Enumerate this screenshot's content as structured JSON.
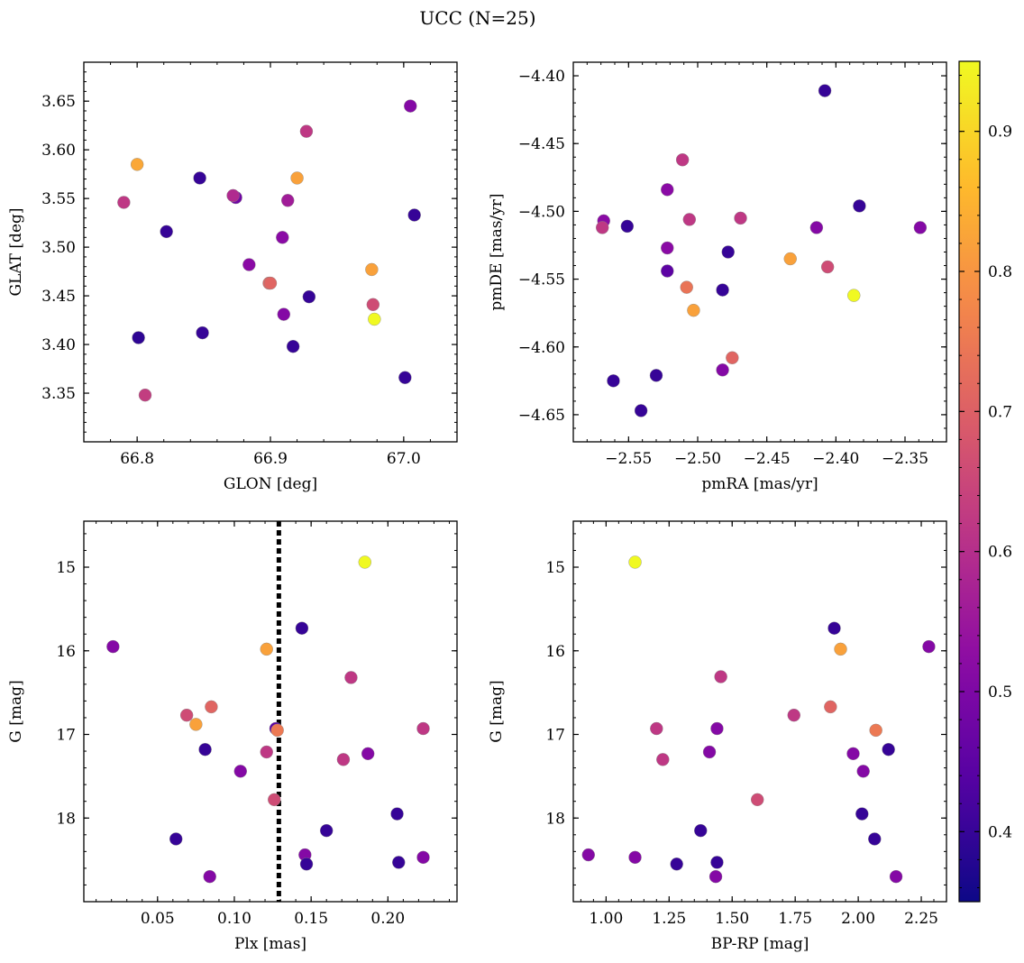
{
  "title": "UCC (N=25)",
  "colorbar": {
    "min": 0.35,
    "max": 0.95,
    "ticks": [
      "0.4",
      "0.5",
      "0.6",
      "0.7",
      "0.8",
      "0.9"
    ],
    "colormap": "plasma"
  },
  "chart_data": [
    {
      "type": "scatter",
      "xlabel": "GLON [deg]",
      "ylabel": "GLAT [deg]",
      "xlim": [
        66.76,
        67.04
      ],
      "ylim": [
        3.3,
        3.69
      ],
      "xticks": [
        "66.8",
        "66.9",
        "67.0"
      ],
      "yticks": [
        "3.35",
        "3.40",
        "3.45",
        "3.50",
        "3.55",
        "3.60",
        "3.65"
      ],
      "x": [
        66.92,
        66.8,
        66.847,
        66.822,
        66.874,
        66.79,
        66.913,
        66.909,
        66.884,
        66.899,
        66.929,
        66.976,
        66.977,
        66.91,
        66.849,
        66.801,
        66.917,
        66.806,
        67.001,
        66.978,
        67.005,
        66.927,
        67.008,
        66.872,
        66.9
      ],
      "y": [
        3.571,
        3.585,
        3.571,
        3.516,
        3.551,
        3.546,
        3.548,
        3.51,
        3.482,
        3.463,
        3.449,
        3.477,
        3.441,
        3.431,
        3.412,
        3.407,
        3.398,
        3.348,
        3.366,
        3.426,
        3.645,
        3.619,
        3.533,
        3.553,
        3.463
      ],
      "c": [
        0.82,
        0.83,
        0.4,
        0.4,
        0.48,
        0.62,
        0.56,
        0.52,
        0.52,
        0.71,
        0.4,
        0.82,
        0.66,
        0.51,
        0.4,
        0.39,
        0.4,
        0.63,
        0.4,
        0.95,
        0.51,
        0.62,
        0.4,
        0.59,
        0.71
      ]
    },
    {
      "type": "scatter",
      "xlabel": "pmRA [mas/yr]",
      "ylabel": "pmDE [mas/yr]",
      "xlim": [
        -2.59,
        -2.32
      ],
      "ylim": [
        -4.67,
        -4.39
      ],
      "xticks": [
        "−2.55",
        "−2.50",
        "−2.45",
        "−2.40",
        "−2.35"
      ],
      "yticks": [
        "−4.65",
        "−4.60",
        "−4.55",
        "−4.50",
        "−4.45",
        "−4.40"
      ],
      "x": [
        -2.408,
        -2.511,
        -2.522,
        -2.469,
        -2.568,
        -2.551,
        -2.383,
        -2.339,
        -2.414,
        -2.506,
        -2.569,
        -2.522,
        -2.478,
        -2.522,
        -2.433,
        -2.406,
        -2.482,
        -2.508,
        -2.503,
        -2.387,
        -2.475,
        -2.482,
        -2.561,
        -2.53,
        -2.541
      ],
      "y": [
        -4.411,
        -4.462,
        -4.484,
        -4.505,
        -4.507,
        -4.511,
        -4.496,
        -4.512,
        -4.512,
        -4.506,
        -4.512,
        -4.527,
        -4.53,
        -4.544,
        -4.535,
        -4.541,
        -4.558,
        -4.556,
        -4.573,
        -4.562,
        -4.608,
        -4.617,
        -4.625,
        -4.621,
        -4.647
      ],
      "c": [
        0.4,
        0.62,
        0.52,
        0.62,
        0.52,
        0.4,
        0.4,
        0.51,
        0.51,
        0.62,
        0.62,
        0.52,
        0.4,
        0.45,
        0.82,
        0.66,
        0.4,
        0.74,
        0.82,
        0.95,
        0.71,
        0.51,
        0.4,
        0.4,
        0.4
      ]
    },
    {
      "type": "scatter",
      "xlabel": "Plx [mas]",
      "ylabel": "G [mag]",
      "xlim": [
        0.002,
        0.245
      ],
      "ylim": [
        19.0,
        14.45
      ],
      "y_inverted": true,
      "xticks": [
        "0.05",
        "0.10",
        "0.15",
        "0.20"
      ],
      "yticks": [
        "15",
        "16",
        "17",
        "18"
      ],
      "vline": 0.129,
      "x": [
        0.185,
        0.144,
        0.021,
        0.121,
        0.176,
        0.085,
        0.069,
        0.075,
        0.127,
        0.223,
        0.081,
        0.121,
        0.187,
        0.171,
        0.104,
        0.126,
        0.206,
        0.16,
        0.062,
        0.207,
        0.223,
        0.146,
        0.147,
        0.084,
        0.128
      ],
      "y": [
        14.94,
        15.73,
        15.95,
        15.98,
        16.32,
        16.67,
        16.77,
        16.88,
        16.93,
        16.93,
        17.18,
        17.21,
        17.23,
        17.3,
        17.44,
        17.78,
        17.95,
        18.15,
        18.25,
        18.53,
        18.47,
        18.44,
        18.55,
        18.7,
        16.95
      ],
      "c": [
        0.95,
        0.4,
        0.51,
        0.82,
        0.62,
        0.71,
        0.66,
        0.82,
        0.45,
        0.62,
        0.4,
        0.62,
        0.51,
        0.62,
        0.51,
        0.66,
        0.4,
        0.4,
        0.4,
        0.4,
        0.51,
        0.51,
        0.4,
        0.51,
        0.75
      ]
    },
    {
      "type": "scatter",
      "xlabel": "BP-RP [mag]",
      "ylabel": "G [mag]",
      "xlim": [
        0.87,
        2.35
      ],
      "ylim": [
        19.0,
        14.45
      ],
      "y_inverted": true,
      "xticks": [
        "1.00",
        "1.25",
        "1.50",
        "1.75",
        "2.00",
        "2.25"
      ],
      "yticks": [
        "15",
        "16",
        "17",
        "18"
      ],
      "x": [
        1.115,
        1.905,
        2.28,
        1.93,
        1.455,
        1.745,
        1.89,
        2.07,
        1.44,
        1.2,
        2.12,
        1.41,
        1.98,
        1.225,
        2.02,
        1.6,
        2.015,
        1.375,
        2.065,
        1.435,
        2.15,
        0.93,
        1.115,
        1.28,
        1.44
      ],
      "y": [
        14.94,
        15.73,
        15.95,
        15.98,
        16.31,
        16.77,
        16.67,
        16.95,
        16.93,
        16.93,
        17.18,
        17.21,
        17.23,
        17.3,
        17.44,
        17.78,
        17.95,
        18.15,
        18.25,
        18.7,
        18.7,
        18.44,
        18.47,
        18.55,
        18.53
      ],
      "c": [
        0.95,
        0.4,
        0.51,
        0.82,
        0.62,
        0.62,
        0.71,
        0.75,
        0.51,
        0.62,
        0.4,
        0.51,
        0.51,
        0.62,
        0.51,
        0.66,
        0.4,
        0.4,
        0.4,
        0.51,
        0.51,
        0.51,
        0.51,
        0.4,
        0.4
      ]
    }
  ]
}
